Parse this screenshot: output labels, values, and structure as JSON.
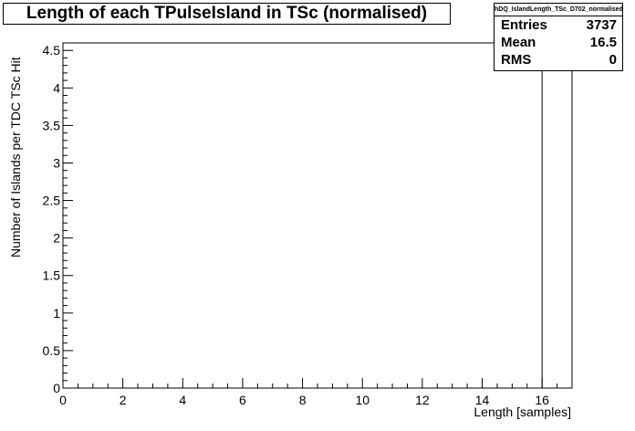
{
  "title": "Length of each TPulseIsland in TSc (normalised)",
  "stats": {
    "name": "hDQ_IslandLength_TSc_D702_normalised",
    "rows": [
      {
        "label": "Entries",
        "value": "3737"
      },
      {
        "label": "Mean",
        "value": "16.5"
      },
      {
        "label": "RMS",
        "value": "0"
      }
    ]
  },
  "chart_data": {
    "type": "bar",
    "title": "Length of each TPulseIsland in TSc (normalised)",
    "xlabel": "Length [samples]",
    "ylabel": "Number of Islands per TDC TSc Hit",
    "xlim": [
      0,
      17
    ],
    "ylim": [
      0,
      4.6
    ],
    "x_ticks": [
      "0",
      "2",
      "4",
      "6",
      "8",
      "10",
      "12",
      "14",
      "16"
    ],
    "y_ticks": [
      "0",
      "0.5",
      "1",
      "1.5",
      "2",
      "2.5",
      "3",
      "3.5",
      "4",
      "4.5"
    ],
    "bins": [
      {
        "x0": 16,
        "x1": 17,
        "value": 4.6
      }
    ],
    "grid": false,
    "colors": {
      "line": "#000000",
      "background": "#ffffff"
    }
  }
}
